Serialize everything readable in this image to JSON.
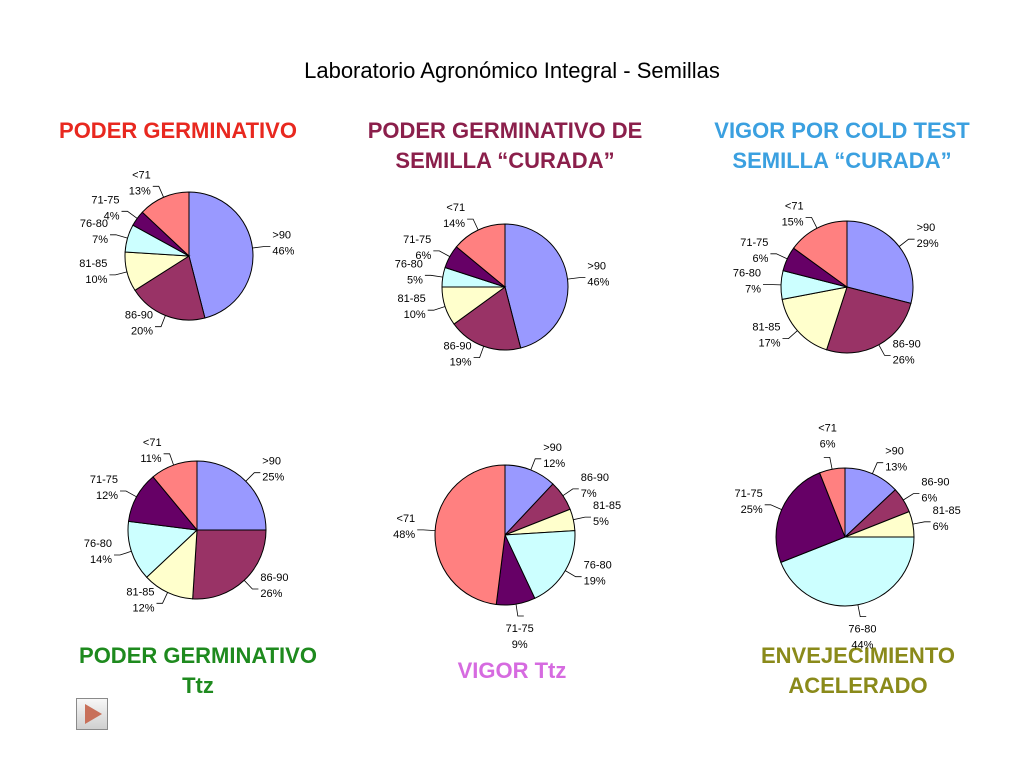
{
  "title": "Laboratorio Agronómico Integral - Semillas",
  "nav": {
    "icon": "play-icon"
  },
  "chart_data": [
    {
      "id": "pg",
      "type": "pie",
      "title_lines": [
        "PODER GERMINATIVO"
      ],
      "title_color": "#e8281f",
      "categories": [
        ">90",
        "86-90",
        "81-85",
        "76-80",
        "71-75",
        "<71"
      ],
      "values": [
        46,
        20,
        10,
        7,
        4,
        13
      ],
      "labels": [
        "46%",
        "20%",
        "10%",
        "7%",
        "4%",
        "13%"
      ],
      "colors": [
        "#9999ff",
        "#993366",
        "#ffffcc",
        "#ccffff",
        "#660066",
        "#ff8080"
      ]
    },
    {
      "id": "pgc",
      "type": "pie",
      "title_lines": [
        "PODER GERMINATIVO DE",
        "SEMILLA “CURADA”"
      ],
      "title_color": "#8b1f4b",
      "categories": [
        ">90",
        "86-90",
        "81-85",
        "76-80",
        "71-75",
        "<71"
      ],
      "values": [
        46,
        19,
        10,
        5,
        6,
        14
      ],
      "labels": [
        "46%",
        "19%",
        "10%",
        "5%",
        "6%",
        "14%"
      ],
      "colors": [
        "#9999ff",
        "#993366",
        "#ffffcc",
        "#ccffff",
        "#660066",
        "#ff8080"
      ]
    },
    {
      "id": "vct",
      "type": "pie",
      "title_lines": [
        "VIGOR POR COLD TEST",
        "SEMILLA “CURADA”"
      ],
      "title_color": "#3ba0e0",
      "categories": [
        ">90",
        "86-90",
        "81-85",
        "76-80",
        "71-75",
        "<71"
      ],
      "values": [
        29,
        26,
        17,
        7,
        6,
        15
      ],
      "labels": [
        "29%",
        "26%",
        "17%",
        "7%",
        "6%",
        "15%"
      ],
      "colors": [
        "#9999ff",
        "#993366",
        "#ffffcc",
        "#ccffff",
        "#660066",
        "#ff8080"
      ]
    },
    {
      "id": "pgt",
      "type": "pie",
      "title_lines": [
        "PODER GERMINATIVO",
        "Ttz"
      ],
      "title_color": "#1e8a1e",
      "categories": [
        ">90",
        "86-90",
        "81-85",
        "76-80",
        "71-75",
        "<71"
      ],
      "values": [
        25,
        26,
        12,
        14,
        12,
        11
      ],
      "labels": [
        "25%",
        "26%",
        "12%",
        "14%",
        "12%",
        "11%"
      ],
      "colors": [
        "#9999ff",
        "#993366",
        "#ffffcc",
        "#ccffff",
        "#660066",
        "#ff8080"
      ]
    },
    {
      "id": "vt",
      "type": "pie",
      "title_lines": [
        "VIGOR Ttz"
      ],
      "title_color": "#d66be0",
      "categories": [
        ">90",
        "86-90",
        "81-85",
        "76-80",
        "71-75",
        "<71"
      ],
      "values": [
        12,
        7,
        5,
        19,
        9,
        48
      ],
      "labels": [
        "12%",
        "7%",
        "5%",
        "19%",
        "9%",
        "48%"
      ],
      "colors": [
        "#9999ff",
        "#993366",
        "#ffffcc",
        "#ccffff",
        "#660066",
        "#ff8080"
      ]
    },
    {
      "id": "ea",
      "type": "pie",
      "title_lines": [
        "ENVEJECIMIENTO",
        "ACELERADO"
      ],
      "title_color": "#8a8a1a",
      "categories": [
        ">90",
        "86-90",
        "81-85",
        "76-80",
        "71-75",
        "<71"
      ],
      "values": [
        13,
        6,
        6,
        44,
        25,
        6
      ],
      "labels": [
        "13%",
        "6%",
        "6%",
        "44%",
        "25%",
        "6%"
      ],
      "colors": [
        "#9999ff",
        "#993366",
        "#ffffcc",
        "#ccffff",
        "#660066",
        "#ff8080"
      ]
    }
  ]
}
